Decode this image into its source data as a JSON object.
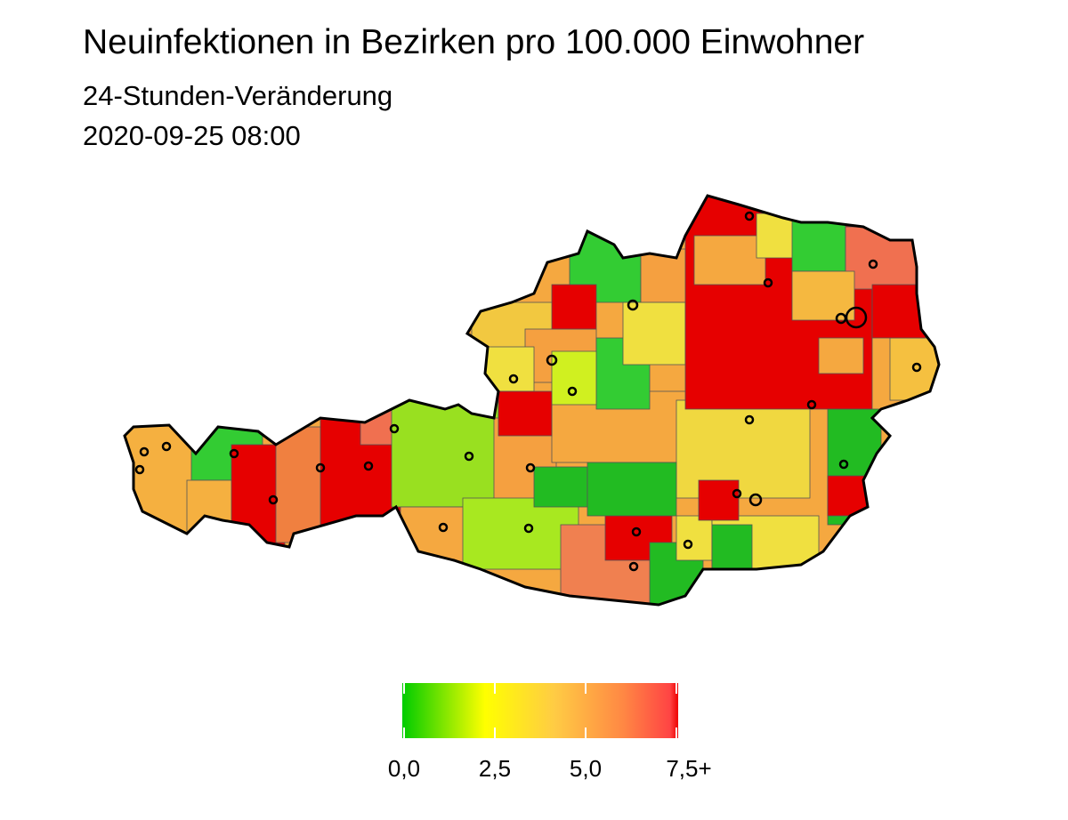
{
  "title": "Neuinfektionen in Bezirken pro 100.000 Einwohner",
  "subtitle": [
    "24-Stunden-Veränderung",
    "2020-09-25 08:00"
  ],
  "legend": {
    "lim": [
      0,
      7.5
    ],
    "ticks": [
      {
        "value": 0,
        "label": "0,0"
      },
      {
        "value": 2.5,
        "label": "2,5"
      },
      {
        "value": 5,
        "label": "5,0"
      },
      {
        "value": 7.5,
        "label": "7,5+"
      }
    ]
  }
}
